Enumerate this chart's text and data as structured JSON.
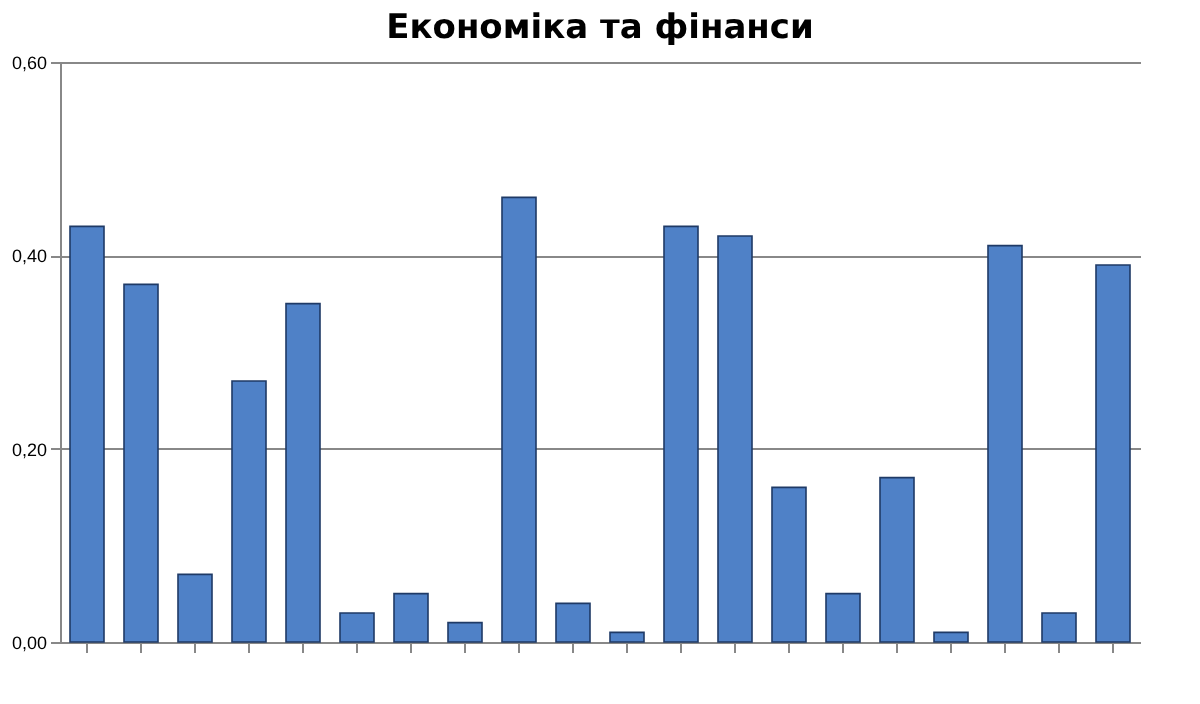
{
  "chart_data": {
    "type": "bar",
    "title": "Економіка та фінанси",
    "categories": [
      null,
      null,
      null,
      null,
      null,
      null,
      null,
      null,
      null,
      null,
      null,
      null,
      null,
      null,
      null,
      null,
      null,
      null,
      null,
      null
    ],
    "values": [
      0.43,
      0.37,
      0.07,
      0.27,
      0.35,
      0.03,
      0.05,
      0.02,
      0.46,
      0.04,
      0.01,
      0.43,
      0.42,
      0.16,
      0.05,
      0.17,
      0.01,
      0.41,
      0.03,
      0.39
    ],
    "color": "#4f81c7",
    "ylim": [
      0,
      0.6
    ],
    "yticks": [
      {
        "value": 0,
        "label": "0,00"
      },
      {
        "value": 0.2,
        "label": "0,20"
      },
      {
        "value": 0.4,
        "label": "0,40"
      },
      {
        "value": 0.6,
        "label": "0,60"
      }
    ],
    "grid": "y",
    "tick_labels": "y"
  }
}
